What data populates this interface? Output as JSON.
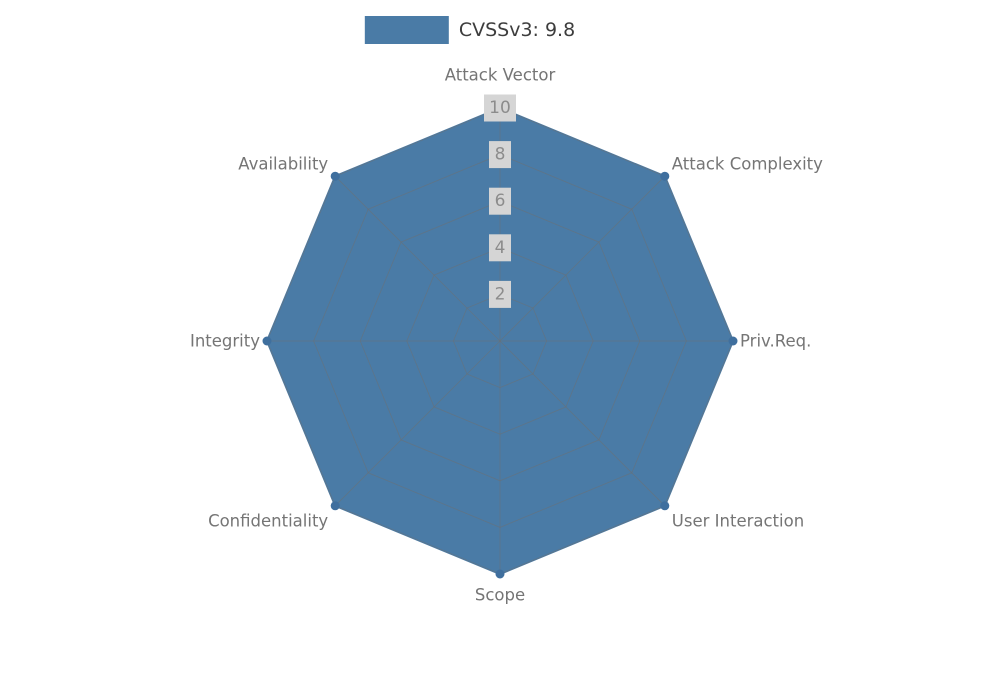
{
  "legend": {
    "label": "CVSSv3: 9.8",
    "swatch_color": "#4a7ba6"
  },
  "chart_data": {
    "type": "radar",
    "title": "CVSSv3: 9.8",
    "categories": [
      "Attack Vector",
      "Attack Complexity",
      "Priv.Req.",
      "User Interaction",
      "Scope",
      "Confidentiality",
      "Integrity",
      "Availability"
    ],
    "series": [
      {
        "name": "CVSSv3: 9.8",
        "values": [
          10,
          10,
          10,
          10,
          10,
          10,
          10,
          10
        ]
      }
    ],
    "ticks": [
      2,
      4,
      6,
      8,
      10
    ],
    "rmax": 10,
    "grid": true,
    "legend_position": "top-center",
    "fill_color": "#4a7ba6",
    "marker_color": "#3f6f9e",
    "grid_color": "#6f6f6f",
    "label_color": "#757575",
    "tick_bg": "#d5d5d5",
    "tick_color": "#8c8c8c"
  }
}
